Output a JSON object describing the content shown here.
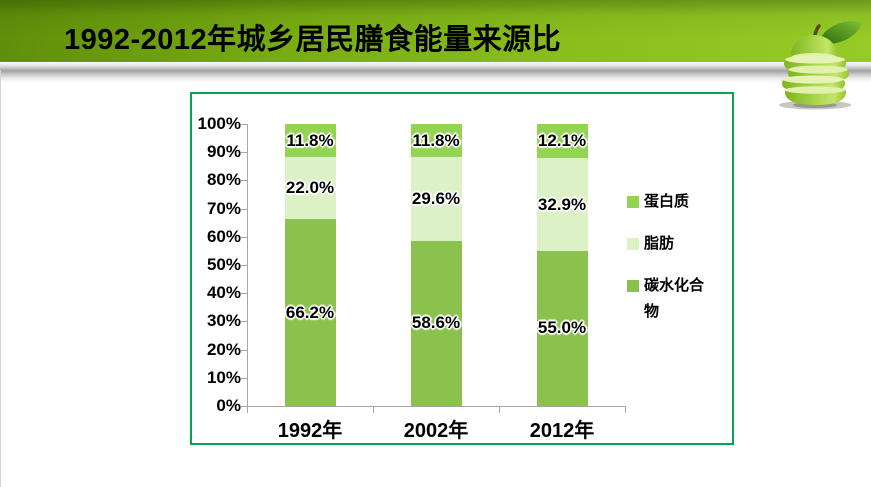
{
  "slide": {
    "title": "1992-2012年城乡居民膳食能量来源比"
  },
  "decor": {
    "apple_icon": "sliced-green-apple"
  },
  "chart_data": {
    "type": "bar",
    "stacked": true,
    "title": "",
    "xlabel": "",
    "ylabel": "",
    "categories": [
      "1992年",
      "2002年",
      "2012年"
    ],
    "series": [
      {
        "name": "碳水化合物",
        "color": "#8bc24e",
        "values": [
          66.2,
          58.6,
          55.0
        ],
        "data_labels": [
          "66.2%",
          "58.6%",
          "55.0%"
        ]
      },
      {
        "name": "脂肪",
        "color": "#dcf1c5",
        "values": [
          22.0,
          29.6,
          32.9
        ],
        "data_labels": [
          "22.0%",
          "29.6%",
          "32.9%"
        ]
      },
      {
        "name": "蛋白质",
        "color": "#94d455",
        "values": [
          11.8,
          11.8,
          12.1
        ],
        "data_labels": [
          "11.8%",
          "11.8%",
          "12.1%"
        ]
      }
    ],
    "legend": [
      "蛋白质",
      "脂肪",
      "碳水化合物"
    ],
    "legend_position": "right",
    "y_ticks": [
      "100%",
      "90%",
      "80%",
      "70%",
      "60%",
      "50%",
      "40%",
      "30%",
      "20%",
      "10%",
      "0%"
    ],
    "ylim": [
      0,
      100
    ],
    "grid": false,
    "colors": {
      "chart_border": "#00a651",
      "axis": "#a6a6a6",
      "label_text": "#000000"
    }
  }
}
